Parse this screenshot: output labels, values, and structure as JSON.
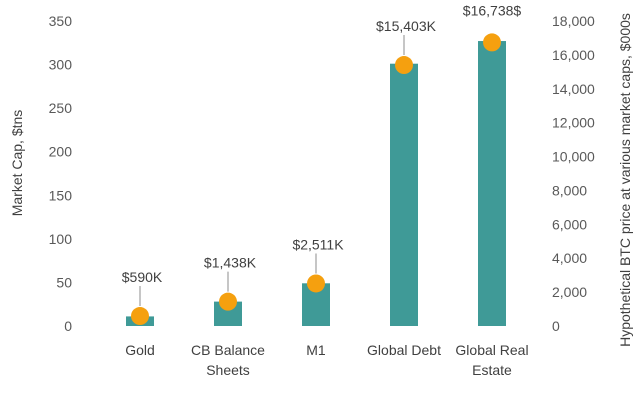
{
  "chart_data": {
    "type": "bar",
    "categories": [
      [
        "Gold"
      ],
      [
        "CB Balance",
        "Sheets"
      ],
      [
        "M1"
      ],
      [
        "Global Debt"
      ],
      [
        "Global Real",
        "Estate"
      ]
    ],
    "series": [
      {
        "type": "bar",
        "axis": "left",
        "values": [
          11,
          28,
          49,
          301,
          327
        ]
      },
      {
        "type": "scatter",
        "axis": "right",
        "values": [
          590,
          1438,
          2511,
          15403,
          16738
        ]
      }
    ],
    "data_labels": [
      "$590K",
      "$1,438K",
      "$2,511K",
      "$15,403K",
      "$16,738$"
    ],
    "ylabel": "Market Cap, $tns",
    "ylabel_right": "Hypothetical BTC price at various market caps, $000s",
    "ylim": [
      0,
      350
    ],
    "ylim_right": [
      0,
      18000
    ],
    "yticks": [
      "0",
      "50",
      "100",
      "150",
      "200",
      "250",
      "300",
      "350"
    ],
    "yticks_right": [
      "0",
      "2,000",
      "4,000",
      "6,000",
      "8,000",
      "10,000",
      "12,000",
      "14,000",
      "16,000",
      "18,000"
    ],
    "grid": false,
    "colors": {
      "bar": "#3f9a97",
      "marker": "#f5a00f",
      "leader": "#8c8c8c"
    }
  }
}
